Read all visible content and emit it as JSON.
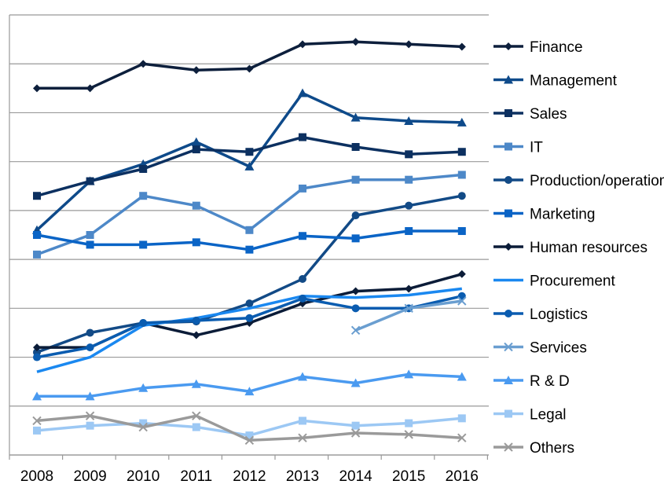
{
  "chart_data": {
    "type": "line",
    "title": "",
    "xlabel": "",
    "ylabel": "",
    "ylim": [
      0,
      9
    ],
    "grid": "horizontal",
    "legend_position": "right",
    "categories": [
      "2008",
      "2009",
      "2010",
      "2011",
      "2012",
      "2013",
      "2014",
      "2015",
      "2016"
    ],
    "series": [
      {
        "name": "Finance",
        "color": "#0d1f3c",
        "marker": "diamond",
        "values": [
          7.5,
          7.5,
          8.0,
          7.87,
          7.9,
          8.4,
          8.45,
          8.4,
          8.35
        ]
      },
      {
        "name": "Management",
        "color": "#0e4a8a",
        "marker": "triangle",
        "values": [
          4.6,
          5.6,
          5.95,
          6.4,
          5.9,
          7.4,
          6.9,
          6.83,
          6.8
        ]
      },
      {
        "name": "Sales",
        "color": "#0c3060",
        "marker": "square",
        "values": [
          5.3,
          5.6,
          5.85,
          6.25,
          6.2,
          6.5,
          6.3,
          6.15,
          6.2
        ]
      },
      {
        "name": "IT",
        "color": "#4d88c8",
        "marker": "square",
        "values": [
          4.1,
          4.5,
          5.3,
          5.1,
          4.6,
          5.45,
          5.63,
          5.63,
          5.73
        ]
      },
      {
        "name": "Production/operations",
        "color": "#124a86",
        "marker": "circle",
        "values": [
          2.1,
          2.5,
          2.7,
          2.73,
          3.1,
          3.6,
          4.9,
          5.1,
          5.3
        ]
      },
      {
        "name": "Marketing",
        "color": "#0a64c6",
        "marker": "square",
        "values": [
          4.5,
          4.3,
          4.3,
          4.35,
          4.2,
          4.48,
          4.43,
          4.58,
          4.58
        ]
      },
      {
        "name": "Human resources",
        "color": "#0b1c38",
        "marker": "diamond",
        "values": [
          2.2,
          2.2,
          2.7,
          2.45,
          2.7,
          3.1,
          3.35,
          3.4,
          3.7
        ]
      },
      {
        "name": "Procurement",
        "color": "#1a88f0",
        "marker": "none",
        "values": [
          1.7,
          2.0,
          2.65,
          2.8,
          3.0,
          3.25,
          3.22,
          3.27,
          3.4
        ]
      },
      {
        "name": "Logistics",
        "color": "#0a5cb0",
        "marker": "circle",
        "values": [
          2.0,
          2.2,
          2.7,
          2.75,
          2.8,
          3.2,
          3.0,
          3.0,
          3.25
        ]
      },
      {
        "name": "Services",
        "color": "#6a9ed0",
        "marker": "x",
        "values": [
          null,
          null,
          null,
          null,
          null,
          null,
          2.55,
          3.0,
          3.15
        ]
      },
      {
        "name": "R & D",
        "color": "#4a9af0",
        "marker": "triangle",
        "values": [
          1.2,
          1.2,
          1.37,
          1.45,
          1.3,
          1.6,
          1.47,
          1.65,
          1.6
        ]
      },
      {
        "name": "Legal",
        "color": "#9cc8f4",
        "marker": "square",
        "values": [
          0.5,
          0.6,
          0.65,
          0.57,
          0.4,
          0.7,
          0.6,
          0.65,
          0.75
        ]
      },
      {
        "name": "Others",
        "color": "#9a9a9a",
        "marker": "x",
        "values": [
          0.7,
          0.8,
          0.57,
          0.8,
          0.3,
          0.35,
          0.45,
          0.42,
          0.35
        ]
      }
    ]
  }
}
